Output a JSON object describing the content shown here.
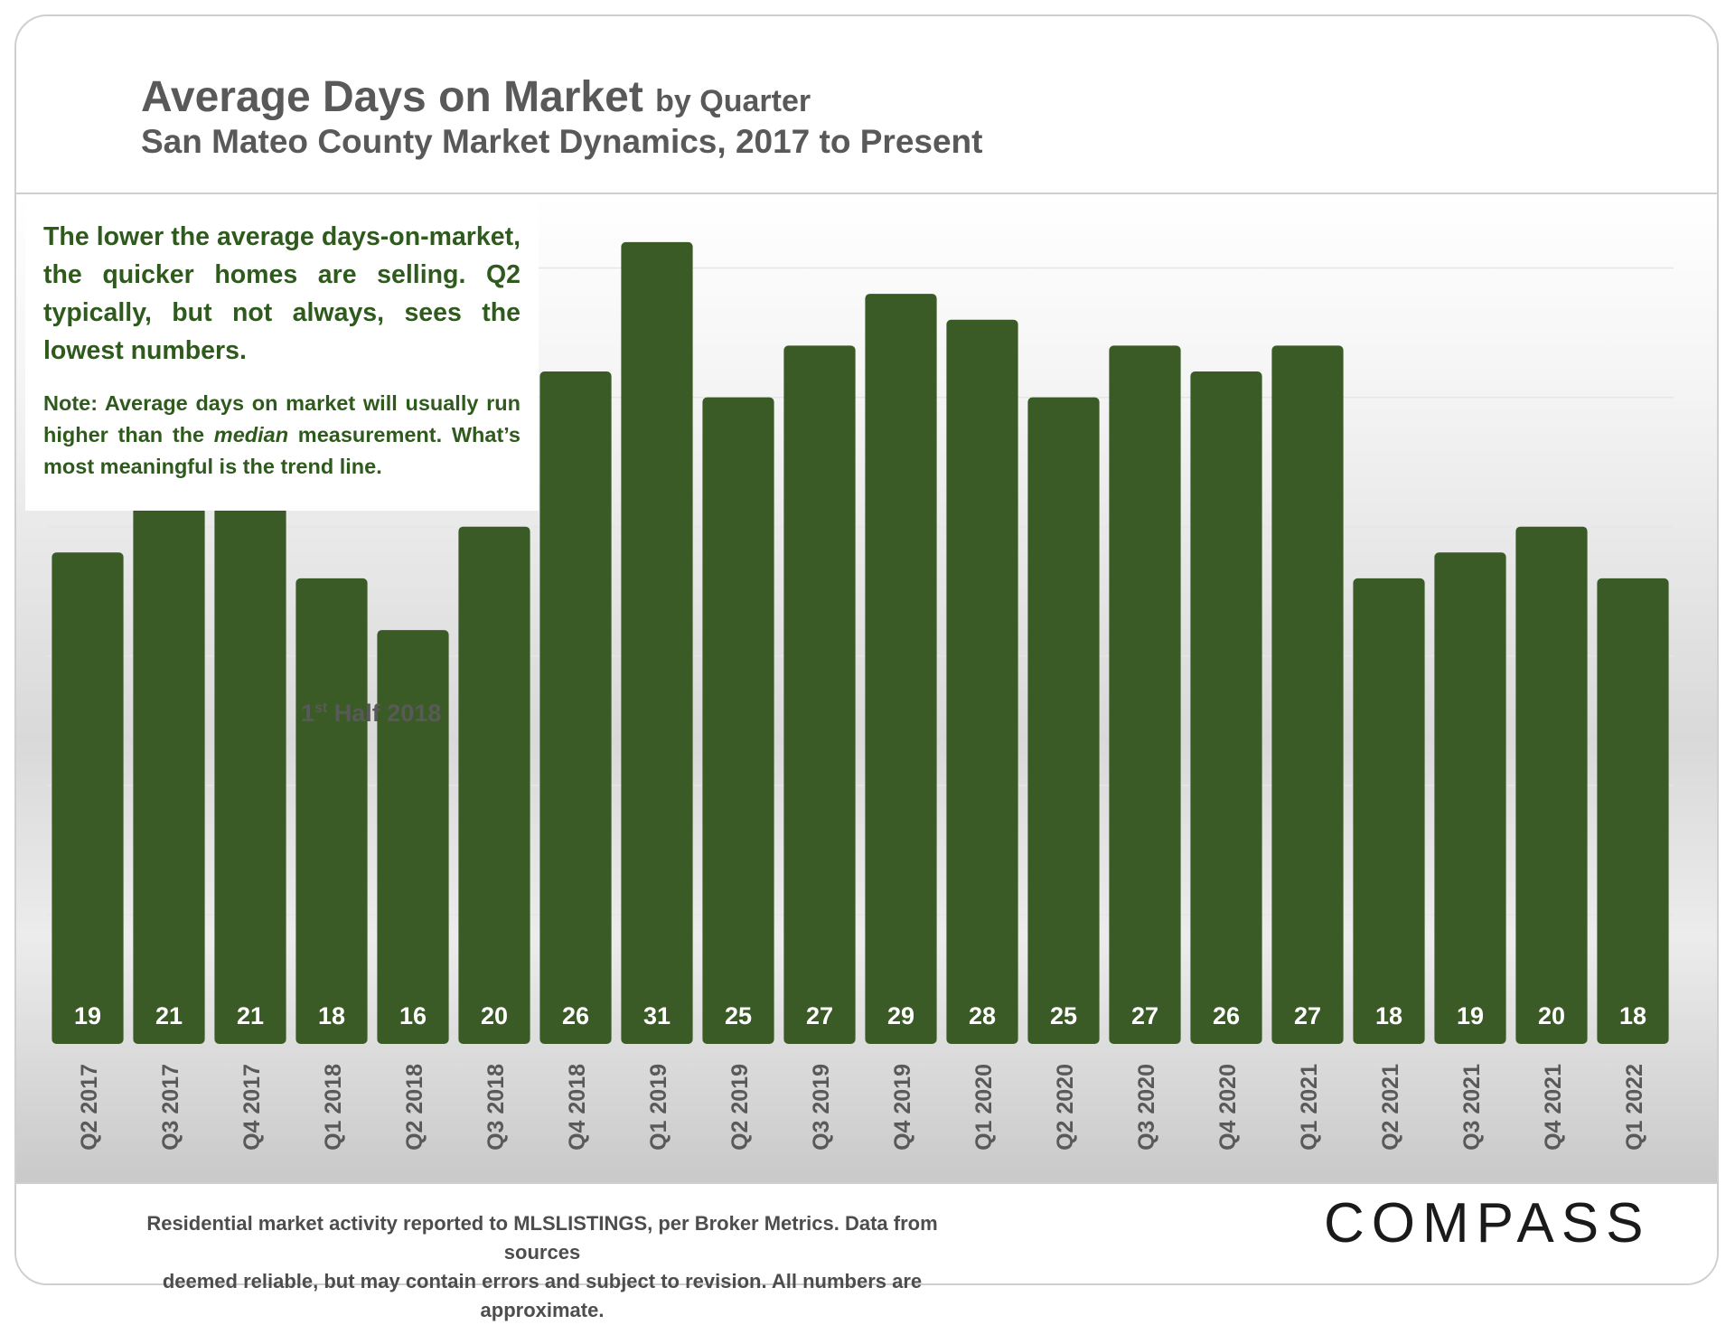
{
  "header": {
    "title": "Average Days on Market",
    "title_suffix": "by Quarter",
    "subtitle": "San Mateo County Market Dynamics, 2017 to Present"
  },
  "callout": {
    "main": "The lower the average days-on-market, the quicker homes are selling. Q2 typically, but not always, sees the lowest numbers.",
    "note_before": "Note: Average days on market will usually run higher than the",
    "note_em": "median",
    "note_after": "measurement. What’s most meaningful is the trend line."
  },
  "annotation": {
    "ordinal": "1",
    "ordinal_suffix": "st",
    "text": "Half 2018"
  },
  "footer": {
    "note_line1": "Residential market activity reported to MLSLISTINGS, per Broker Metrics. Data from sources",
    "note_line2": "deemed reliable, but may contain errors and subject to revision. All numbers are approximate.",
    "logo": "COMPASS"
  },
  "colors": {
    "bar": "#3a5a26",
    "bar_label": "#ffffff",
    "tick_label": "#595959",
    "gridline": "#e6e6e6"
  },
  "chart_data": {
    "type": "bar",
    "title": "Average Days on Market by Quarter",
    "subtitle": "San Mateo County Market Dynamics, 2017 to Present",
    "categories": [
      "Q2 2017",
      "Q3 2017",
      "Q4 2017",
      "Q1 2018",
      "Q2 2018",
      "Q3 2018",
      "Q4 2018",
      "Q1 2019",
      "Q2 2019",
      "Q3 2019",
      "Q4 2019",
      "Q1 2020",
      "Q2 2020",
      "Q3 2020",
      "Q4 2020",
      "Q1 2021",
      "Q2 2021",
      "Q3 2021",
      "Q4 2021",
      "Q1 2022"
    ],
    "values": [
      19,
      21,
      21,
      18,
      16,
      20,
      26,
      31,
      25,
      27,
      29,
      28,
      25,
      27,
      26,
      27,
      18,
      19,
      20,
      18
    ],
    "xlabel": "",
    "ylabel": "",
    "ylim": [
      0,
      32.5
    ],
    "grid": true,
    "data_labels": "inside-bottom"
  }
}
